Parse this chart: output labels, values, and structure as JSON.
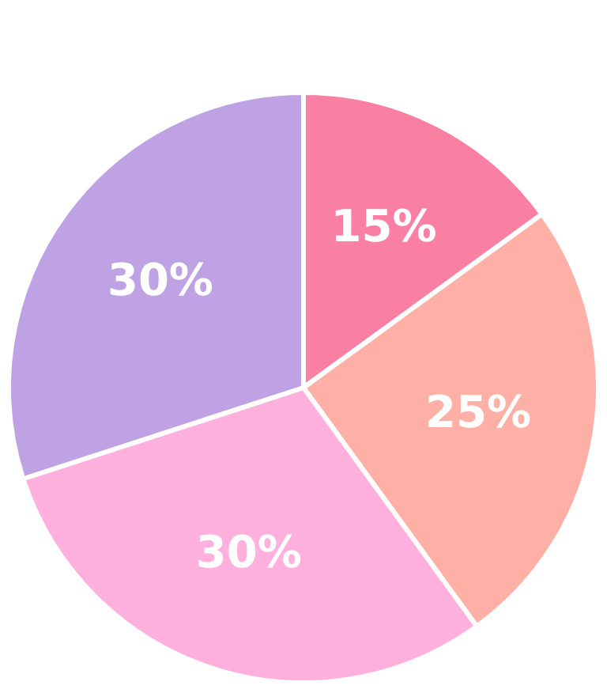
{
  "chart_data": {
    "type": "pie",
    "categories": [
      null,
      null,
      null,
      null
    ],
    "values": [
      15,
      25,
      30,
      30
    ],
    "colors": [
      "#f97fa3",
      "#ffb0a6",
      "#ffb0dc",
      "#bfa2e4"
    ],
    "value_labels": [
      "15%",
      "25%",
      "30%",
      "30%"
    ],
    "legend": false
  }
}
